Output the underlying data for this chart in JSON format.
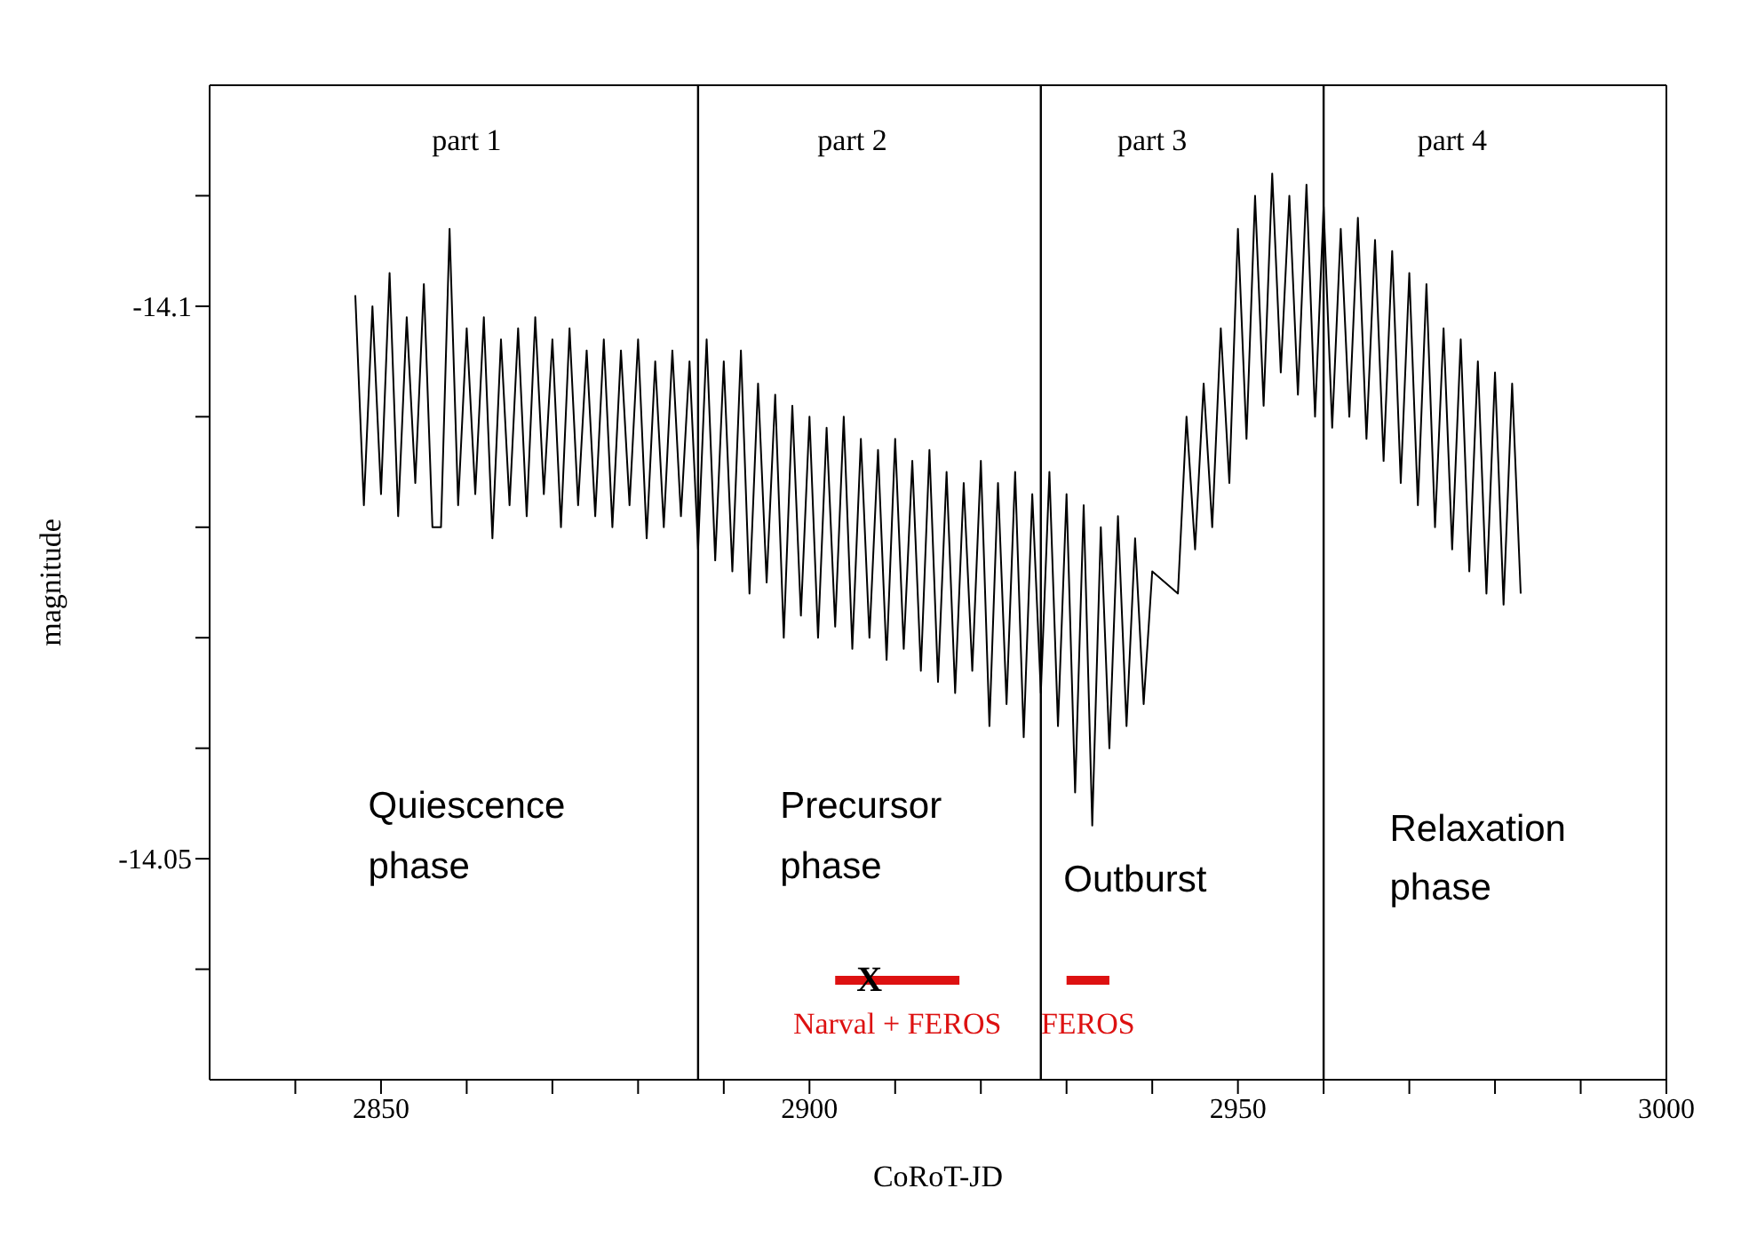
{
  "chart_data": {
    "type": "line",
    "xlabel": "CoRoT-JD",
    "ylabel": "magnitude",
    "xlim": [
      2830,
      3000
    ],
    "ylim": [
      -14.03,
      -14.12
    ],
    "xticks": [
      {
        "value": 2840,
        "label": null
      },
      2850,
      {
        "value": 2860,
        "label": null
      },
      {
        "value": 2870,
        "label": null
      },
      {
        "value": 2880,
        "label": null
      },
      {
        "value": 2890,
        "label": null
      },
      2900,
      {
        "value": 2910,
        "label": null
      },
      {
        "value": 2920,
        "label": null
      },
      {
        "value": 2930,
        "label": null
      },
      {
        "value": 2940,
        "label": null
      },
      2950,
      {
        "value": 2960,
        "label": null
      },
      {
        "value": 2970,
        "label": null
      },
      {
        "value": 2980,
        "label": null
      },
      {
        "value": 2990,
        "label": null
      },
      3000
    ],
    "yticks": [
      {
        "value": -14.11,
        "label": null
      },
      -14.1,
      {
        "value": -14.09,
        "label": null
      },
      {
        "value": -14.08,
        "label": null
      },
      {
        "value": -14.07,
        "label": null
      },
      {
        "value": -14.06,
        "label": null
      },
      -14.05,
      {
        "value": -14.04,
        "label": null
      }
    ],
    "marker": "none",
    "line_style": "solid",
    "series": [
      {
        "color": "#000000",
        "x": [
          2847,
          2848,
          2849,
          2850,
          2851,
          2852,
          2853,
          2854,
          2855,
          2856,
          2857,
          2858,
          2859,
          2860,
          2861,
          2862,
          2863,
          2864,
          2865,
          2866,
          2867,
          2868,
          2869,
          2870,
          2871,
          2872,
          2873,
          2874,
          2875,
          2876,
          2877,
          2878,
          2879,
          2880,
          2881,
          2882,
          2883,
          2884,
          2885,
          2886,
          2887,
          2888,
          2889,
          2890,
          2891,
          2892,
          2893,
          2894,
          2895,
          2896,
          2897,
          2898,
          2899,
          2900,
          2901,
          2902,
          2903,
          2904,
          2905,
          2906,
          2907,
          2908,
          2909,
          2910,
          2911,
          2912,
          2913,
          2914,
          2915,
          2916,
          2917,
          2918,
          2919,
          2920,
          2921,
          2922,
          2923,
          2924,
          2925,
          2926,
          2927,
          2928,
          2929,
          2930,
          2931,
          2932,
          2933,
          2934,
          2935,
          2936,
          2937,
          2938,
          2939,
          2940,
          2943,
          2944,
          2945,
          2946,
          2947,
          2948,
          2949,
          2950,
          2951,
          2952,
          2953,
          2954,
          2955,
          2956,
          2957,
          2958,
          2959,
          2960,
          2961,
          2962,
          2963,
          2964,
          2965,
          2966,
          2967,
          2968,
          2969,
          2970,
          2971,
          2972,
          2973,
          2974,
          2975,
          2976,
          2977,
          2978,
          2979,
          2980,
          2981,
          2982,
          2983
        ],
        "values": [
          -14.101,
          -14.082,
          -14.1,
          -14.083,
          -14.103,
          -14.081,
          -14.099,
          -14.084,
          -14.102,
          -14.08,
          -14.08,
          -14.107,
          -14.082,
          -14.098,
          -14.083,
          -14.099,
          -14.079,
          -14.097,
          -14.082,
          -14.098,
          -14.081,
          -14.099,
          -14.083,
          -14.097,
          -14.08,
          -14.098,
          -14.082,
          -14.096,
          -14.081,
          -14.097,
          -14.08,
          -14.096,
          -14.082,
          -14.097,
          -14.079,
          -14.095,
          -14.08,
          -14.096,
          -14.081,
          -14.095,
          -14.078,
          -14.097,
          -14.077,
          -14.095,
          -14.076,
          -14.096,
          -14.074,
          -14.093,
          -14.075,
          -14.092,
          -14.07,
          -14.091,
          -14.072,
          -14.09,
          -14.07,
          -14.089,
          -14.071,
          -14.09,
          -14.069,
          -14.088,
          -14.07,
          -14.087,
          -14.068,
          -14.088,
          -14.069,
          -14.086,
          -14.067,
          -14.087,
          -14.066,
          -14.085,
          -14.065,
          -14.084,
          -14.067,
          -14.086,
          -14.062,
          -14.084,
          -14.064,
          -14.085,
          -14.061,
          -14.083,
          -14.065,
          -14.085,
          -14.062,
          -14.083,
          -14.056,
          -14.082,
          -14.053,
          -14.08,
          -14.06,
          -14.081,
          -14.062,
          -14.079,
          -14.064,
          -14.076,
          -14.074,
          -14.09,
          -14.078,
          -14.093,
          -14.08,
          -14.098,
          -14.084,
          -14.107,
          -14.088,
          -14.11,
          -14.091,
          -14.112,
          -14.094,
          -14.11,
          -14.092,
          -14.111,
          -14.09,
          -14.109,
          -14.089,
          -14.107,
          -14.09,
          -14.108,
          -14.088,
          -14.106,
          -14.086,
          -14.105,
          -14.084,
          -14.103,
          -14.082,
          -14.102,
          -14.08,
          -14.098,
          -14.078,
          -14.097,
          -14.076,
          -14.095,
          -14.074,
          -14.094,
          -14.073,
          -14.093,
          -14.074
        ]
      },
      {
        "name": "Narval + FEROS",
        "color": "#dd1111",
        "x": [
          2903,
          2917.5
        ],
        "values": [
          -14.039,
          -14.039
        ]
      },
      {
        "name": "FEROS",
        "color": "#dd1111",
        "x": [
          2930,
          2935
        ],
        "values": [
          -14.039,
          -14.039
        ]
      }
    ],
    "ref_lines": [
      {
        "axis": "x",
        "value": 2887,
        "color": "#000000"
      },
      {
        "axis": "x",
        "value": 2927,
        "color": "#000000"
      },
      {
        "axis": "x",
        "value": 2960,
        "color": "#000000"
      }
    ],
    "annotations": [
      "part 1",
      "part 2",
      "part 3",
      "part 4",
      "Quiescence\nphase",
      "Precursor\nphase",
      "Outburst",
      "Relaxation\nphase",
      "X"
    ]
  }
}
